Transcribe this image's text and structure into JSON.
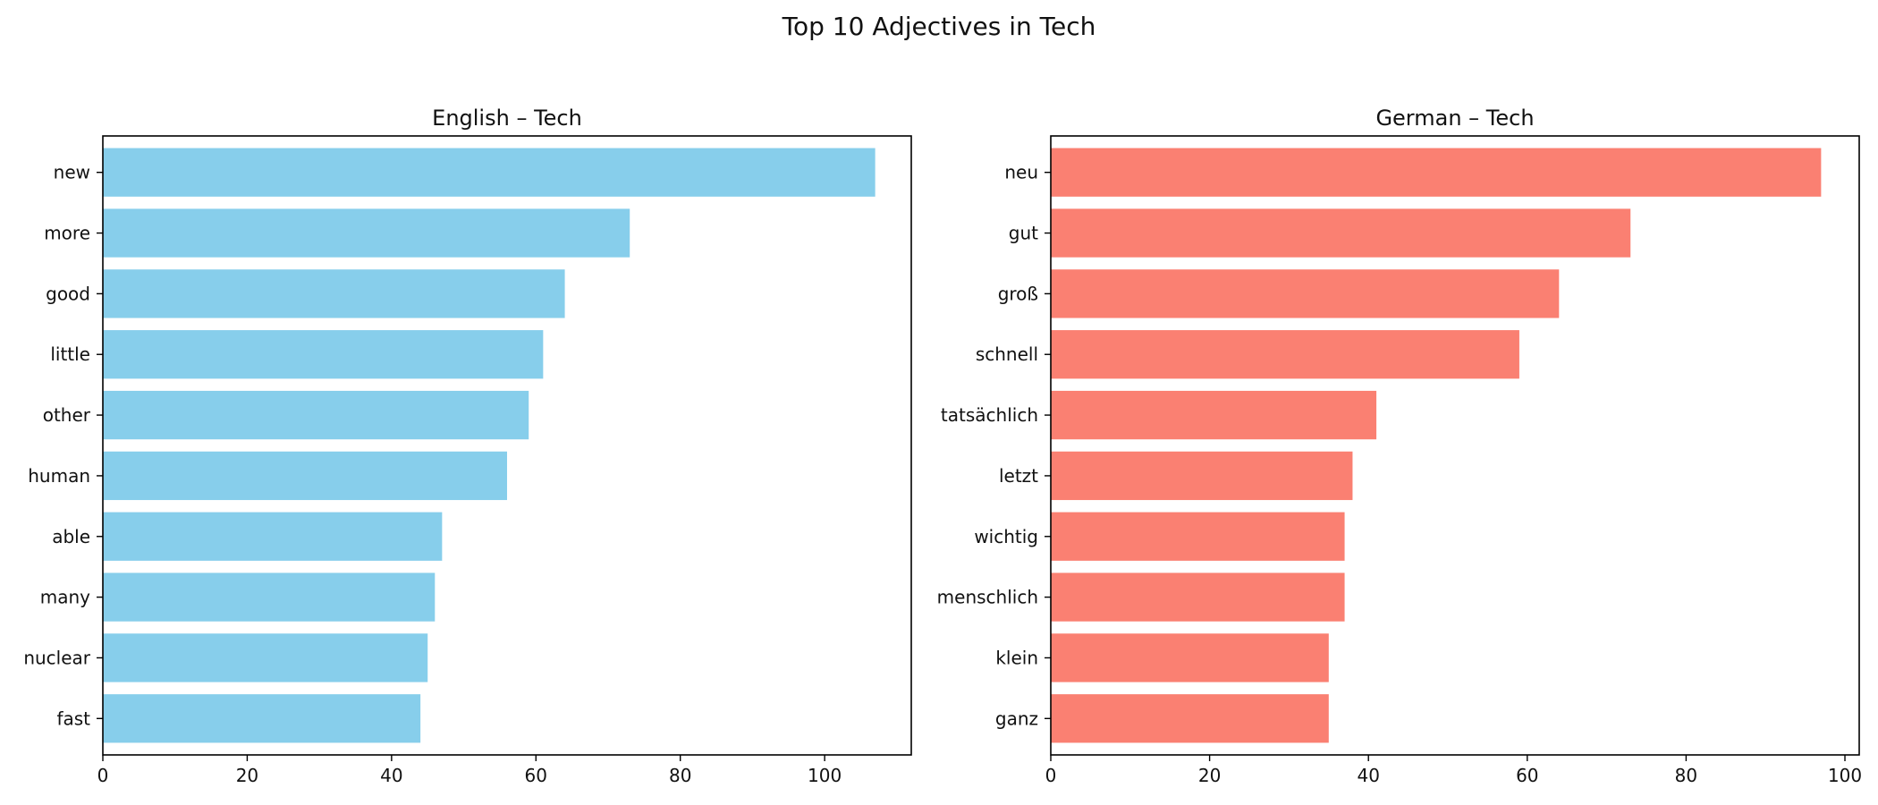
{
  "figure": {
    "title": "Top 10 Adjectives in Tech"
  },
  "chart_data": [
    {
      "type": "bar",
      "orientation": "horizontal",
      "title": "English – Tech",
      "xlabel": "",
      "ylabel": "",
      "categories": [
        "new",
        "more",
        "good",
        "little",
        "other",
        "human",
        "able",
        "many",
        "nuclear",
        "fast"
      ],
      "values": [
        107,
        73,
        64,
        61,
        59,
        56,
        47,
        46,
        45,
        44
      ],
      "xlim": [
        0,
        112
      ],
      "xticks": [
        0,
        20,
        40,
        60,
        80,
        100
      ],
      "color": "#87CEEB",
      "grid": false,
      "legend": "none"
    },
    {
      "type": "bar",
      "orientation": "horizontal",
      "title": "German – Tech",
      "xlabel": "",
      "ylabel": "",
      "categories": [
        "neu",
        "gut",
        "groß",
        "schnell",
        "tatsächlich",
        "letzt",
        "wichtig",
        "menschlich",
        "klein",
        "ganz"
      ],
      "values": [
        97,
        73,
        64,
        59,
        41,
        38,
        37,
        37,
        35,
        35
      ],
      "xlim": [
        0,
        101.8
      ],
      "xticks": [
        0,
        20,
        40,
        60,
        80,
        100
      ],
      "color": "#FA8072",
      "grid": false,
      "legend": "none"
    }
  ]
}
